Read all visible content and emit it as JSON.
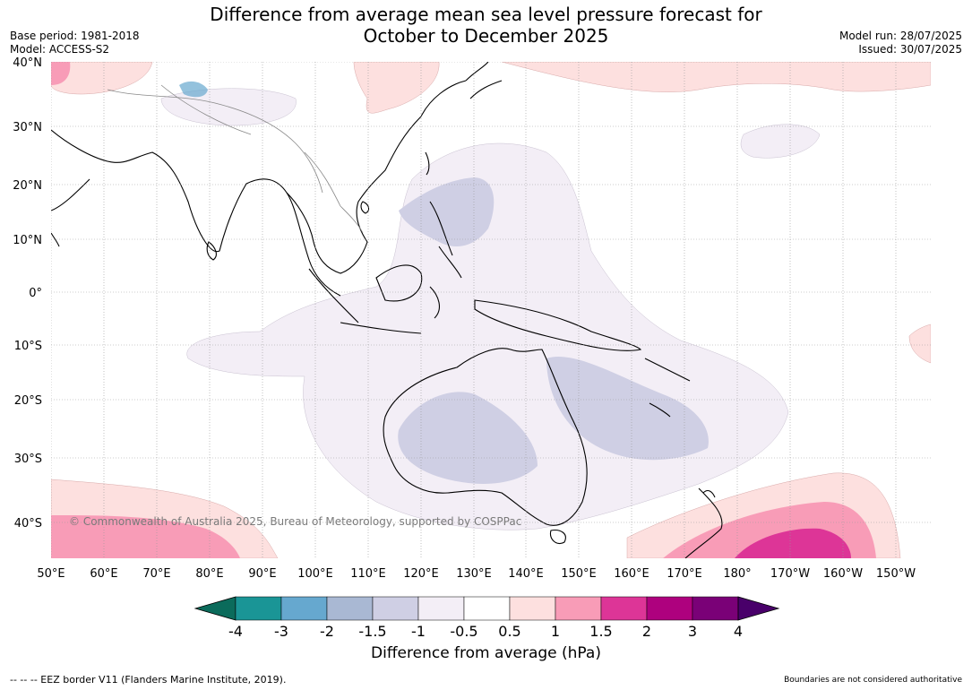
{
  "title_line1": "Difference from average mean sea level pressure forecast for",
  "title_line2": "October to December 2025",
  "base_period": "Base period: 1981-2018",
  "model": "Model: ACCESS-S2",
  "model_run": "Model run: 28/07/2025",
  "issued": "Issued: 30/07/2025",
  "map": {
    "lat_labels": [
      "40°N",
      "30°N",
      "20°N",
      "10°N",
      "0°",
      "10°S",
      "20°S",
      "30°S",
      "40°S"
    ],
    "lat_values": [
      40,
      30,
      20,
      10,
      0,
      -10,
      -20,
      -30,
      -40
    ],
    "lon_labels": [
      "50°E",
      "60°E",
      "70°E",
      "80°E",
      "90°E",
      "100°E",
      "110°E",
      "120°E",
      "130°E",
      "140°E",
      "150°E",
      "160°E",
      "170°E",
      "180°",
      "170°W",
      "160°W",
      "150°W"
    ],
    "lon_values": [
      50,
      60,
      70,
      80,
      90,
      100,
      110,
      120,
      130,
      140,
      150,
      160,
      170,
      180,
      190,
      200,
      210
    ],
    "copyright": "© Commonwealth of Australia 2025, Bureau of Meteorology, supported by COSPPac"
  },
  "colorbar": {
    "tick_labels": [
      "-4",
      "-3",
      "-2",
      "-1.5",
      "-1",
      "-0.5",
      "0.5",
      "1",
      "1.5",
      "2",
      "3",
      "4"
    ],
    "colors": [
      "#1a9596",
      "#66a8cf",
      "#a9b8d3",
      "#cfcfe4",
      "#f3eef6",
      "#ffffff",
      "#fde0df",
      "#f89cb7",
      "#dd3597",
      "#ae017e",
      "#7a0177"
    ],
    "under_color": "#0b6b5b",
    "over_color": "#49006a",
    "label": "Difference from average (hPa)"
  },
  "footer_left": "-- -- -- EEZ border V11 (Flanders Marine Institute, 2019).",
  "footer_right": "Boundaries are not considered authoritative"
}
